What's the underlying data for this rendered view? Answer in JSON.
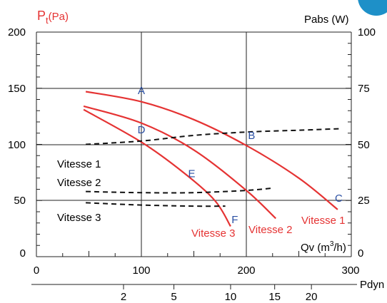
{
  "colors": {
    "pressure_curve": "#e53333",
    "power_curve": "#111111",
    "grid": "#222222",
    "point_label": "#2a4fa3",
    "corner_badge": "#1e90c8"
  },
  "chart_data": {
    "type": "line",
    "left_axis": {
      "label_main": "P",
      "label_sub": "t",
      "label_unit": "(Pa)",
      "range": [
        0,
        200
      ],
      "ticks": [
        "0",
        "50",
        "100",
        "150",
        "200"
      ]
    },
    "right_axis": {
      "label": "Pabs (W)",
      "range": [
        0,
        100
      ],
      "ticks": [
        "0",
        "25",
        "50",
        "75",
        "100"
      ]
    },
    "x_axis": {
      "label": "Qv (m",
      "label_sup": "3",
      "label_end": "/h)",
      "range": [
        0,
        300
      ],
      "ticks": [
        "0",
        "100",
        "200",
        "300"
      ]
    },
    "pdyn_axis": {
      "label": "Pdyn",
      "ticks": [
        {
          "label": "2",
          "qv": 83
        },
        {
          "label": "5",
          "qv": 131
        },
        {
          "label": "10",
          "qv": 185
        },
        {
          "label": "15",
          "qv": 227
        },
        {
          "label": "20",
          "qv": 262
        }
      ]
    },
    "grid": {
      "vertical_at_qv": [
        100,
        200
      ],
      "horizontal_at_pt": [
        50,
        100,
        150
      ]
    },
    "pressure_series": [
      {
        "name": "Vitesse 1",
        "points": [
          [
            47,
            147
          ],
          [
            100,
            138
          ],
          [
            150,
            122
          ],
          [
            200,
            99
          ],
          [
            250,
            70
          ],
          [
            287,
            42
          ]
        ]
      },
      {
        "name": "Vitesse 2",
        "points": [
          [
            45,
            134
          ],
          [
            100,
            119
          ],
          [
            150,
            95
          ],
          [
            200,
            59
          ],
          [
            228,
            34
          ]
        ]
      },
      {
        "name": "Vitesse 3",
        "points": [
          [
            45,
            131
          ],
          [
            100,
            102
          ],
          [
            140,
            75
          ],
          [
            170,
            50
          ],
          [
            185,
            27
          ]
        ]
      }
    ],
    "power_series": [
      {
        "name": "Vitesse 1",
        "points": [
          [
            47,
            50
          ],
          [
            100,
            51.5
          ],
          [
            150,
            54
          ],
          [
            200,
            55.5
          ],
          [
            250,
            56.3
          ],
          [
            290,
            57
          ]
        ]
      },
      {
        "name": "Vitesse 2",
        "points": [
          [
            47,
            29
          ],
          [
            100,
            28.5
          ],
          [
            150,
            28.5
          ],
          [
            200,
            29.5
          ],
          [
            225,
            30.5
          ]
        ]
      },
      {
        "name": "Vitesse 3",
        "points": [
          [
            47,
            24
          ],
          [
            100,
            23
          ],
          [
            150,
            22.5
          ],
          [
            180,
            22.5
          ]
        ]
      }
    ],
    "points": [
      {
        "label": "A",
        "qv": 100,
        "pt": 148
      },
      {
        "label": "B",
        "qv": 205,
        "pt": 108
      },
      {
        "label": "C",
        "qv": 288,
        "pt": 52
      },
      {
        "label": "D",
        "qv": 100,
        "pt": 113
      },
      {
        "label": "E",
        "qv": 148,
        "pt": 74
      },
      {
        "label": "F",
        "qv": 189,
        "pt": 33
      }
    ],
    "curve_labels": [
      "Vitesse 1",
      "Vitesse 2",
      "Vitesse 3",
      "Vitesse 1",
      "Vitesse 2",
      "Vitesse 3"
    ]
  }
}
